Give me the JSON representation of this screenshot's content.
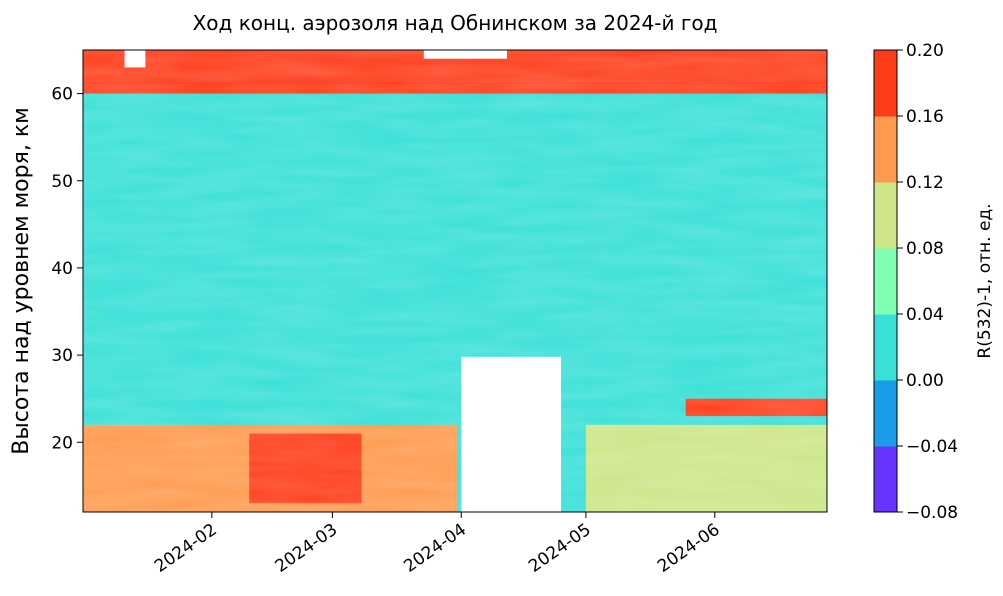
{
  "chart_data": {
    "type": "heatmap",
    "title": "Ход конц. аэрозоля над Обнинском за 2024-й год",
    "xlabel": "",
    "ylabel": "Высота над уровнем моря, км",
    "x_ticks": [
      "2024-02",
      "2024-03",
      "2024-04",
      "2024-05",
      "2024-06"
    ],
    "x_range": [
      "2024-01-01",
      "2024-06-28"
    ],
    "y_ticks": [
      20,
      30,
      40,
      50,
      60
    ],
    "ylim": [
      12,
      65
    ],
    "colorbar": {
      "label": "R(532)-1, отн. ед.",
      "levels": [
        -0.08,
        -0.04,
        0.0,
        0.04,
        0.08,
        0.12,
        0.16,
        0.2
      ],
      "level_labels": [
        "−0.08",
        "−0.04",
        "0.00",
        "0.04",
        "0.08",
        "0.12",
        "0.16",
        "0.20"
      ],
      "colors": [
        "#6633ff",
        "#1a9de8",
        "#38e0d8",
        "#80ffb4",
        "#cce688",
        "#ff9a4e",
        "#ff3c1a"
      ]
    },
    "approx_bands": [
      {
        "x_from": "2024-01-01",
        "x_to": "2024-03-31",
        "y_from": 12,
        "y_to": 22,
        "value": 0.12
      },
      {
        "x_from": "2024-02-10",
        "x_to": "2024-03-08",
        "y_from": 13,
        "y_to": 21,
        "value": 0.18
      },
      {
        "x_from": "2024-04-01",
        "x_to": "2024-04-25",
        "y_from": 30,
        "y_to": 65,
        "value": 0.02
      },
      {
        "x_from": "2024-05-01",
        "x_to": "2024-06-28",
        "y_from": 12,
        "y_to": 22,
        "value": 0.08
      },
      {
        "x_from": "2024-05-25",
        "x_to": "2024-06-28",
        "y_from": 23,
        "y_to": 25,
        "value": 0.18
      },
      {
        "x_from": "2024-01-01",
        "x_to": "2024-06-28",
        "y_from": 60,
        "y_to": 65,
        "value": 0.18
      }
    ],
    "missing_data": [
      {
        "x_from": "2024-04-01",
        "x_to": "2024-04-25",
        "y_from": 12,
        "y_to": 29.8
      },
      {
        "x_from": "2024-01-11",
        "x_to": "2024-01-16",
        "y_from": 63,
        "y_to": 65
      },
      {
        "x_from": "2024-03-23",
        "x_to": "2024-04-12",
        "y_from": 64,
        "y_to": 65
      }
    ]
  }
}
